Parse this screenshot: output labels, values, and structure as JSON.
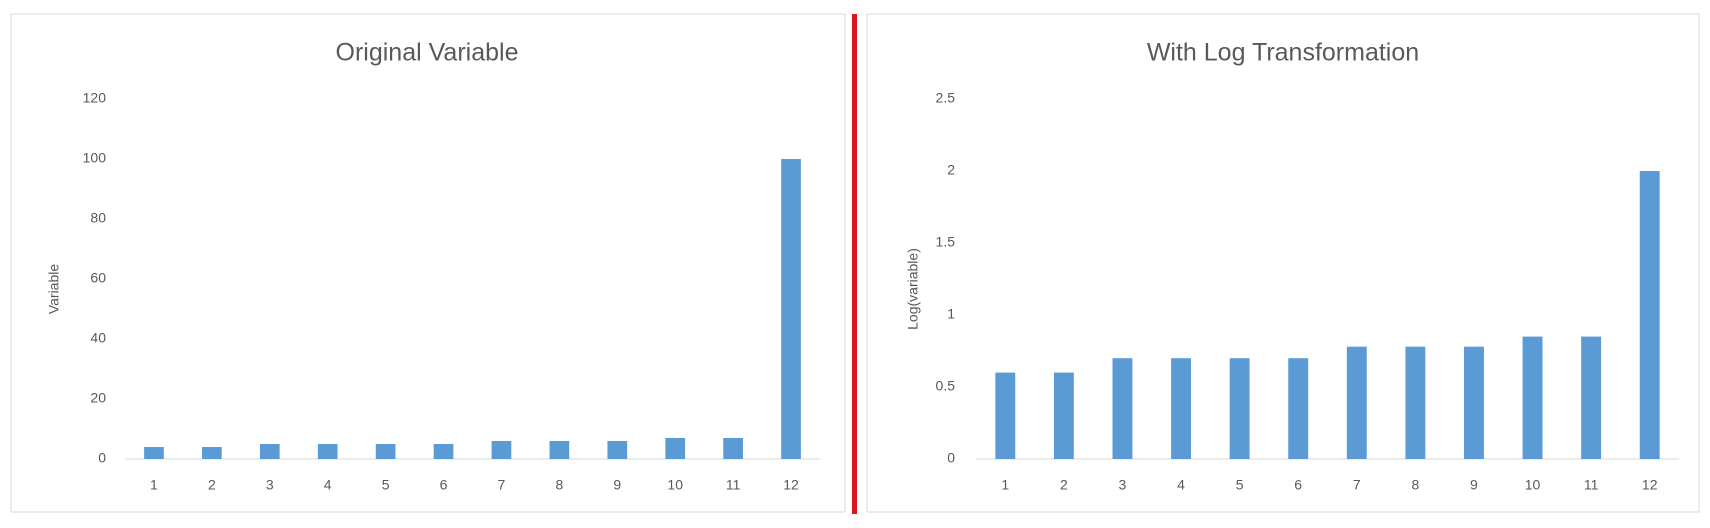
{
  "chart_data": [
    {
      "type": "bar",
      "title": "Original Variable",
      "y_label": "Variable",
      "categories": [
        "1",
        "2",
        "3",
        "4",
        "5",
        "6",
        "7",
        "8",
        "9",
        "10",
        "11",
        "12"
      ],
      "values": [
        4,
        4,
        5,
        5,
        5,
        5,
        6,
        6,
        6,
        7,
        7,
        100
      ],
      "color": "#5b9bd5",
      "ylim": [
        0,
        120
      ],
      "yticks": [
        0,
        20,
        40,
        60,
        80,
        100,
        120
      ]
    },
    {
      "type": "bar",
      "title": "With Log Transformation",
      "y_label": "Log(variable)",
      "categories": [
        "1",
        "2",
        "3",
        "4",
        "5",
        "6",
        "7",
        "8",
        "9",
        "10",
        "11",
        "12"
      ],
      "values": [
        0.6,
        0.6,
        0.7,
        0.7,
        0.7,
        0.7,
        0.78,
        0.78,
        0.78,
        0.85,
        0.85,
        2
      ],
      "color": "#5b9bd5",
      "ylim": [
        0,
        2.5
      ],
      "yticks": [
        0,
        0.5,
        1,
        1.5,
        2,
        2.5
      ]
    }
  ]
}
